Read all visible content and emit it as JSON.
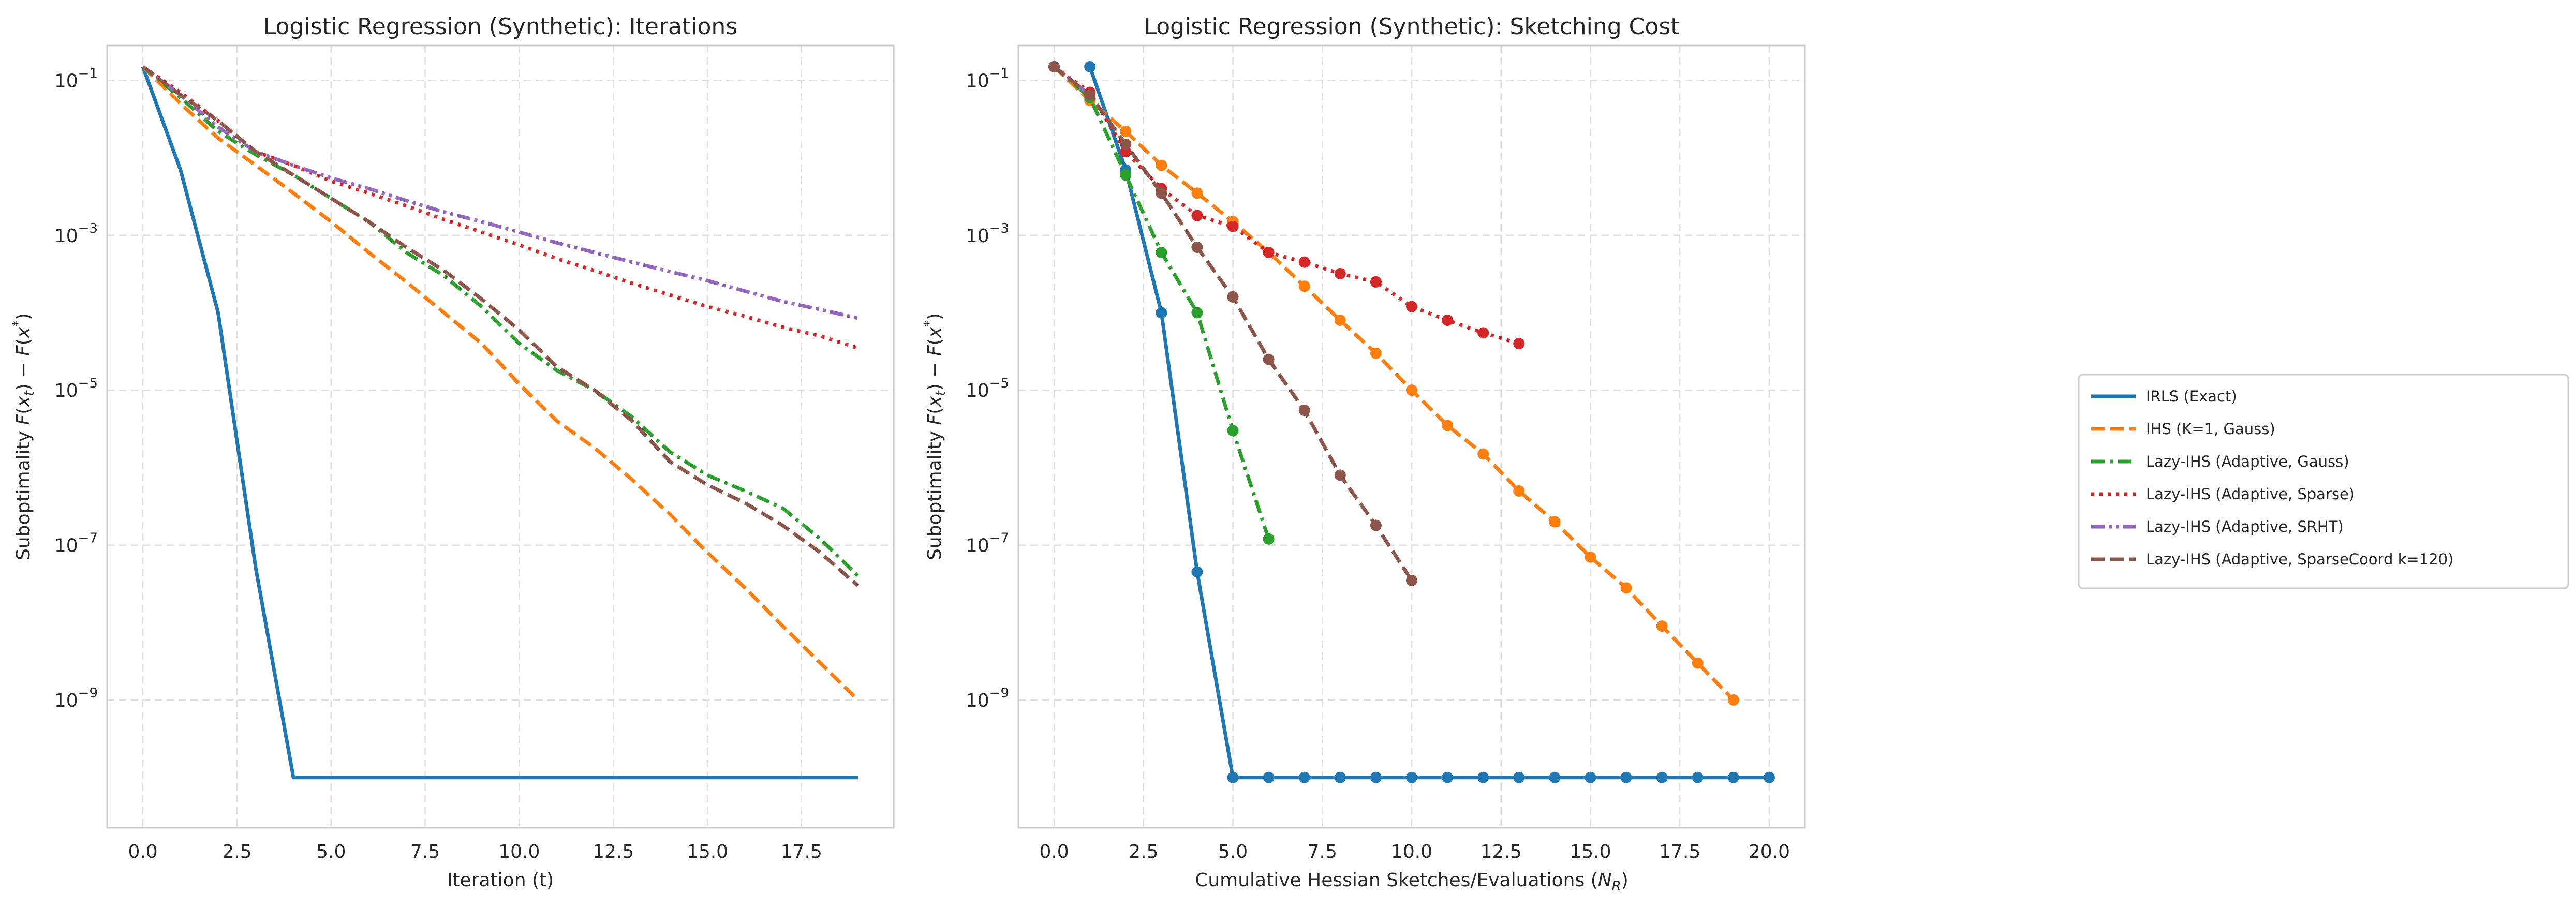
{
  "chart_data": [
    {
      "type": "line",
      "title": "Logistic Regression (Synthetic): Iterations",
      "xlabel": "Iteration (t)",
      "ylabel": "Suboptimality F(x_t) − F(x*)",
      "yscale": "log",
      "xlim": [
        -0.95,
        19.95
      ],
      "ylim_exp": [
        -10.65,
        -0.55
      ],
      "xticks": [
        "0.0",
        "2.5",
        "5.0",
        "7.5",
        "10.0",
        "12.5",
        "15.0",
        "17.5"
      ],
      "xtick_values": [
        0,
        2.5,
        5,
        7.5,
        10,
        12.5,
        15,
        17.5
      ],
      "ytick_exponents": [
        -1,
        -3,
        -5,
        -7,
        -9
      ],
      "grid": true,
      "series": [
        {
          "name": "IRLS (Exact)",
          "x": [
            0,
            1,
            2,
            3,
            4,
            5,
            6,
            7,
            8,
            9,
            10,
            11,
            12,
            13,
            14,
            15,
            16,
            17,
            18,
            19
          ],
          "y": [
            0.15,
            0.007,
            0.0001,
            5e-08,
            1e-10,
            1e-10,
            1e-10,
            1e-10,
            1e-10,
            1e-10,
            1e-10,
            1e-10,
            1e-10,
            1e-10,
            1e-10,
            1e-10,
            1e-10,
            1e-10,
            1e-10,
            1e-10
          ]
        },
        {
          "name": "IHS (K=1, Gauss)",
          "x": [
            0,
            1,
            2,
            3,
            4,
            5,
            6,
            7,
            8,
            9,
            10,
            11,
            12,
            13,
            14,
            15,
            16,
            17,
            18,
            19
          ],
          "y": [
            0.15,
            0.05,
            0.018,
            0.008,
            0.0035,
            0.0015,
            0.0006,
            0.00025,
            0.0001,
            4e-05,
            1.2e-05,
            4e-06,
            1.8e-06,
            7e-07,
            2.5e-07,
            8e-08,
            2.8e-08,
            9e-09,
            3e-09,
            1e-09
          ]
        },
        {
          "name": "Lazy-IHS (Adaptive, Gauss)",
          "x": [
            0,
            1,
            2,
            3,
            4,
            5,
            6,
            7,
            8,
            9,
            10,
            11,
            12,
            13,
            14,
            15,
            16,
            17,
            18,
            19
          ],
          "y": [
            0.15,
            0.06,
            0.022,
            0.011,
            0.006,
            0.003,
            0.0015,
            0.0006,
            0.0003,
            0.00012,
            4e-05,
            1.8e-05,
            1e-05,
            4.5e-06,
            1.6e-06,
            8e-07,
            5e-07,
            3e-07,
            1.2e-07,
            4e-08
          ]
        },
        {
          "name": "Lazy-IHS (Adaptive, Sparse)",
          "x": [
            0,
            1,
            2,
            3,
            4,
            5,
            6,
            7,
            8,
            9,
            10,
            11,
            12,
            13,
            14,
            15,
            16,
            17,
            18,
            19
          ],
          "y": [
            0.15,
            0.07,
            0.03,
            0.012,
            0.008,
            0.005,
            0.0035,
            0.0024,
            0.0016,
            0.0011,
            0.00075,
            0.0005,
            0.00035,
            0.00024,
            0.00017,
            0.00012,
            9e-05,
            6.5e-05,
            5e-05,
            3.5e-05
          ]
        },
        {
          "name": "Lazy-IHS (Adaptive, SRHT)",
          "x": [
            0,
            1,
            2,
            3,
            4,
            5,
            6,
            7,
            8,
            9,
            10,
            11,
            12,
            13,
            14,
            15,
            16,
            17,
            18,
            19
          ],
          "y": [
            0.15,
            0.065,
            0.025,
            0.012,
            0.008,
            0.0055,
            0.004,
            0.0028,
            0.002,
            0.0015,
            0.0011,
            0.0008,
            0.0006,
            0.00045,
            0.00034,
            0.00026,
            0.00019,
            0.00014,
            0.00011,
            8.5e-05
          ]
        },
        {
          "name": "Lazy-IHS (Adaptive, SparseCoord k=120)",
          "x": [
            0,
            1,
            2,
            3,
            4,
            5,
            6,
            7,
            8,
            9,
            10,
            11,
            12,
            13,
            14,
            15,
            16,
            17,
            18,
            19
          ],
          "y": [
            0.15,
            0.065,
            0.03,
            0.012,
            0.006,
            0.003,
            0.0015,
            0.0007,
            0.00035,
            0.00015,
            6e-05,
            2e-05,
            1e-05,
            4e-06,
            1.2e-06,
            6e-07,
            3.5e-07,
            1.8e-07,
            8e-08,
            3e-08
          ]
        }
      ]
    },
    {
      "type": "line",
      "title": "Logistic Regression (Synthetic): Sketching Cost",
      "xlabel": "Cumulative Hessian Sketches/Evaluations (N_R)",
      "ylabel": "Suboptimality F(x_t) − F(x*)",
      "yscale": "log",
      "markers": true,
      "xlim": [
        -1.0,
        21.0
      ],
      "ylim_exp": [
        -10.65,
        -0.55
      ],
      "xticks": [
        "0.0",
        "2.5",
        "5.0",
        "7.5",
        "10.0",
        "12.5",
        "15.0",
        "17.5",
        "20.0"
      ],
      "xtick_values": [
        0,
        2.5,
        5,
        7.5,
        10,
        12.5,
        15,
        17.5,
        20
      ],
      "ytick_exponents": [
        -1,
        -3,
        -5,
        -7,
        -9
      ],
      "grid": true,
      "series": [
        {
          "name": "IRLS (Exact)",
          "x": [
            1,
            2,
            3,
            4,
            5,
            6,
            7,
            8,
            9,
            10,
            11,
            12,
            13,
            14,
            15,
            16,
            17,
            18,
            19,
            20
          ],
          "y": [
            0.15,
            0.007,
            0.0001,
            4.5e-08,
            1e-10,
            1e-10,
            1e-10,
            1e-10,
            1e-10,
            1e-10,
            1e-10,
            1e-10,
            1e-10,
            1e-10,
            1e-10,
            1e-10,
            1e-10,
            1e-10,
            1e-10,
            1e-10
          ]
        },
        {
          "name": "IHS (K=1, Gauss)",
          "x": [
            0,
            1,
            2,
            3,
            4,
            5,
            6,
            7,
            8,
            9,
            10,
            11,
            12,
            13,
            14,
            15,
            16,
            17,
            18,
            19
          ],
          "y": [
            0.15,
            0.055,
            0.022,
            0.008,
            0.0035,
            0.0015,
            0.0006,
            0.00022,
            8e-05,
            3e-05,
            1e-05,
            3.5e-06,
            1.5e-06,
            5e-07,
            2e-07,
            7e-08,
            2.8e-08,
            9e-09,
            3e-09,
            1e-09
          ]
        },
        {
          "name": "Lazy-IHS (Adaptive, Gauss)",
          "x": [
            0,
            1,
            2,
            3,
            4,
            5,
            6
          ],
          "y": [
            0.15,
            0.06,
            0.006,
            0.0006,
            0.0001,
            3e-06,
            1.2e-07
          ]
        },
        {
          "name": "Lazy-IHS (Adaptive, Sparse)",
          "x": [
            0,
            1,
            2,
            3,
            4,
            5,
            6,
            7,
            8,
            9,
            10,
            11,
            12,
            13
          ],
          "y": [
            0.15,
            0.07,
            0.012,
            0.004,
            0.0018,
            0.0013,
            0.0006,
            0.00045,
            0.00032,
            0.00025,
            0.00012,
            8e-05,
            5.5e-05,
            4e-05
          ]
        },
        {
          "name": "Lazy-IHS (Adaptive, SRHT)",
          "x": [
            0,
            1
          ],
          "y": [
            0.15,
            0.065
          ]
        },
        {
          "name": "Lazy-IHS (Adaptive, SparseCoord k=120)",
          "x": [
            0,
            1,
            2,
            3,
            4,
            5,
            6,
            7,
            8,
            9,
            10
          ],
          "y": [
            0.15,
            0.065,
            0.015,
            0.0035,
            0.0007,
            0.00016,
            2.5e-05,
            5.5e-06,
            8e-07,
            1.8e-07,
            3.5e-08
          ]
        }
      ]
    }
  ],
  "legend": {
    "placement": "right",
    "entries": [
      {
        "label": "IRLS (Exact)",
        "color": "#1f77b4",
        "dash": "solid"
      },
      {
        "label": "IHS (K=1, Gauss)",
        "color": "#ff7f0e",
        "dash": "dashed"
      },
      {
        "label": "Lazy-IHS (Adaptive, Gauss)",
        "color": "#2ca02c",
        "dash": "dashdot"
      },
      {
        "label": "Lazy-IHS (Adaptive, Sparse)",
        "color": "#d62728",
        "dash": "dotted"
      },
      {
        "label": "Lazy-IHS (Adaptive, SRHT)",
        "color": "#9467bd",
        "dash": "dashdotdot"
      },
      {
        "label": "Lazy-IHS (Adaptive, SparseCoord k=120)",
        "color": "#8c564b",
        "dash": "dashed"
      }
    ]
  }
}
